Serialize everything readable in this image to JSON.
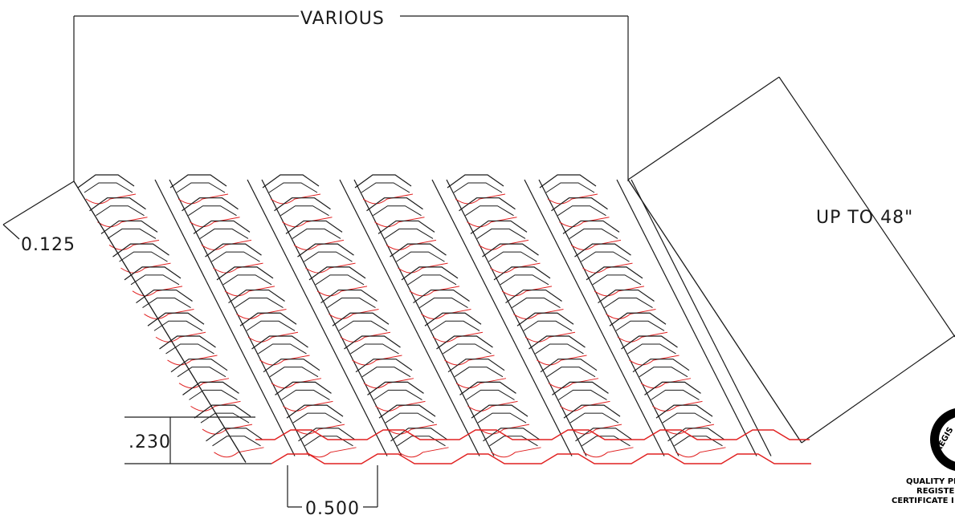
{
  "diagram": {
    "dimensions": {
      "width_label": "VARIOUS",
      "length_label": "UP TO 48\"",
      "thickness_label": "0.125",
      "height_label": ".230",
      "pitch_label": "0.500"
    },
    "grid": {
      "columns": 6,
      "rows": 12
    },
    "colors": {
      "line": "#1a1a1a",
      "edge": "#e02020",
      "seal": "#000000"
    },
    "seal": {
      "arc_text": "REGIS",
      "lines": [
        "QUALITY PI",
        "REGISTER",
        "CERTIFICATE I"
      ]
    }
  }
}
